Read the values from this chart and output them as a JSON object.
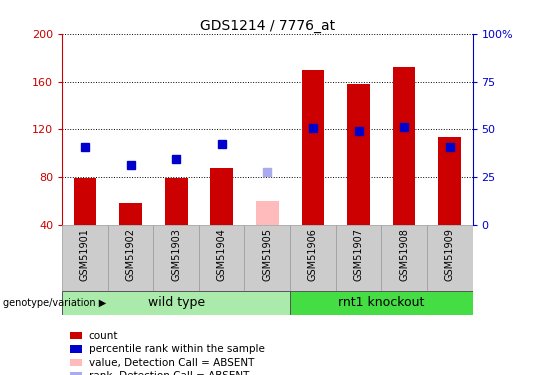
{
  "title": "GDS1214 / 7776_at",
  "samples": [
    "GSM51901",
    "GSM51902",
    "GSM51903",
    "GSM51904",
    "GSM51905",
    "GSM51906",
    "GSM51907",
    "GSM51908",
    "GSM51909"
  ],
  "bar_values": [
    79,
    58,
    79,
    88,
    null,
    170,
    158,
    172,
    114
  ],
  "bar_color": "#cc0000",
  "absent_bar_value": 60,
  "absent_bar_color": "#ffbbbb",
  "rank_values": [
    105,
    90,
    95,
    108,
    null,
    121,
    119,
    122,
    105
  ],
  "rank_color": "#0000cc",
  "absent_rank_value": 84,
  "absent_rank_color": "#aaaaee",
  "absent_index": 4,
  "ylim_left": [
    40,
    200
  ],
  "ylim_right": [
    0,
    100
  ],
  "yticks_left": [
    40,
    80,
    120,
    160,
    200
  ],
  "yticks_right": [
    0,
    25,
    50,
    75,
    100
  ],
  "ytick_right_labels": [
    "0",
    "25",
    "50",
    "75",
    "100%"
  ],
  "group1_label": "wild type",
  "group2_label": "rnt1 knockout",
  "group1_count": 5,
  "group2_count": 4,
  "group_label_prefix": "genotype/variation",
  "legend_items": [
    {
      "label": "count",
      "color": "#cc0000"
    },
    {
      "label": "percentile rank within the sample",
      "color": "#0000cc"
    },
    {
      "label": "value, Detection Call = ABSENT",
      "color": "#ffbbbb"
    },
    {
      "label": "rank, Detection Call = ABSENT",
      "color": "#aaaaee"
    }
  ],
  "background_xtick": "#cccccc",
  "group_bg1": "#aaeaaa",
  "group_bg2": "#44dd44",
  "bar_width": 0.5,
  "marker_size": 6,
  "figsize": [
    5.4,
    3.75
  ],
  "dpi": 100
}
